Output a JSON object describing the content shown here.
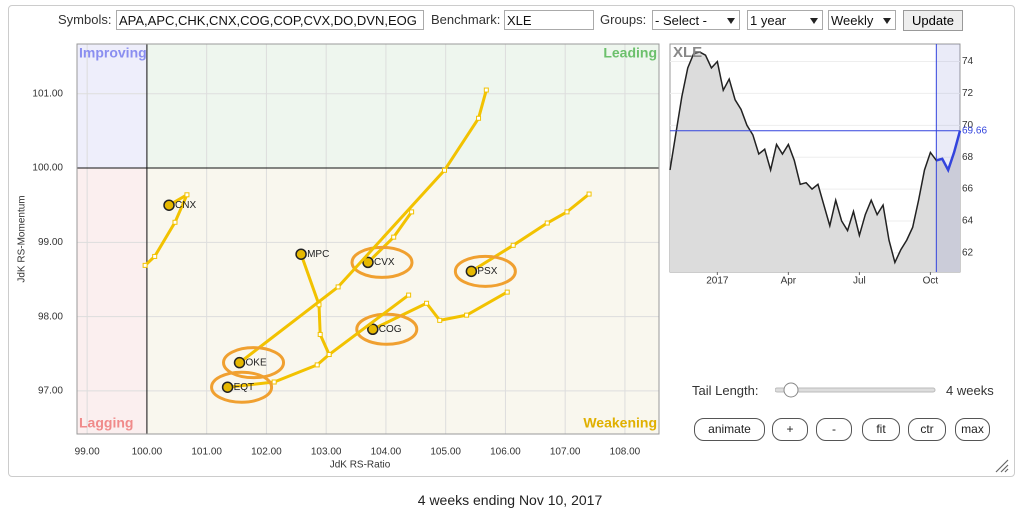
{
  "toolbar": {
    "symbols_label": "Symbols:",
    "symbols": "APA,APC,CHK,CNX,COG,COP,CVX,DO,DVN,EOG",
    "benchmark_label": "Benchmark:",
    "benchmark": "XLE",
    "groups_label": "Groups:",
    "group": "- Select -",
    "period": "1 year",
    "frequency": "Weekly",
    "update": "Update"
  },
  "chart_data": [
    {
      "type": "scatter",
      "x_label": "JdK RS-Ratio",
      "y_label": "JdK RS-Momentum",
      "quadrant_labels": {
        "improving": "Improving",
        "leading": "Leading",
        "lagging": "Lagging",
        "weakening": "Weakening"
      },
      "center": [
        100,
        100
      ],
      "xlim": [
        98.83,
        108.57
      ],
      "ylim": [
        96.42,
        101.67
      ],
      "xticks": [
        {
          "value": 99,
          "label": "99.00"
        },
        {
          "value": 100,
          "label": "100.00"
        },
        {
          "value": 101,
          "label": "101.00"
        },
        {
          "value": 102,
          "label": "102.00"
        },
        {
          "value": 103,
          "label": "103.00"
        },
        {
          "value": 104,
          "label": "104.00"
        },
        {
          "value": 105,
          "label": "105.00"
        },
        {
          "value": 106,
          "label": "106.00"
        },
        {
          "value": 107,
          "label": "107.00"
        },
        {
          "value": 108,
          "label": "108.00"
        }
      ],
      "yticks": [
        {
          "value": 97,
          "label": "97.00"
        },
        {
          "value": 98,
          "label": "98.00"
        },
        {
          "value": 99,
          "label": "99.00"
        },
        {
          "value": 100,
          "label": "100.00"
        },
        {
          "value": 101,
          "label": "101.00"
        }
      ],
      "grid": true,
      "series": [
        {
          "name": "CNX",
          "color": "#f2c200",
          "highlight": false,
          "x": [
            99.97,
            100.13,
            100.47,
            100.67,
            100.37
          ],
          "values": [
            98.69,
            98.81,
            99.27,
            99.64,
            99.5
          ]
        },
        {
          "name": "MPC",
          "color": "#f2c200",
          "highlight": false,
          "x": [
            103.05,
            102.9,
            102.88,
            102.58
          ],
          "values": [
            97.49,
            97.76,
            98.16,
            98.84
          ]
        },
        {
          "name": "CVX",
          "color": "#f2c200",
          "highlight": true,
          "x": [
            104.43,
            104.13,
            103.7
          ],
          "values": [
            99.41,
            99.07,
            98.73
          ]
        },
        {
          "name": "PSX",
          "color": "#f2c200",
          "highlight": true,
          "x": [
            107.4,
            107.03,
            106.7,
            106.13,
            105.43
          ],
          "values": [
            99.65,
            99.41,
            99.26,
            98.96,
            98.61
          ]
        },
        {
          "name": "COG",
          "color": "#f2c200",
          "highlight": true,
          "x": [
            106.03,
            105.35,
            104.9,
            104.68,
            103.78
          ],
          "values": [
            98.33,
            98.02,
            97.95,
            98.18,
            97.83
          ]
        },
        {
          "name": "OKE",
          "color": "#f2c200",
          "highlight": true,
          "x": [
            105.68,
            105.55,
            104.98,
            103.2,
            101.55
          ],
          "values": [
            101.05,
            100.67,
            99.97,
            98.4,
            97.38
          ]
        },
        {
          "name": "EQT",
          "color": "#f2c200",
          "highlight": true,
          "x": [
            104.38,
            103.05,
            102.85,
            102.13,
            101.35
          ],
          "values": [
            98.29,
            97.49,
            97.35,
            97.12,
            97.05
          ]
        }
      ]
    },
    {
      "type": "line",
      "title": "XLE",
      "categories": [
        null,
        null,
        null,
        null,
        null,
        null,
        null,
        null,
        "2017",
        null,
        null,
        null,
        null,
        null,
        null,
        null,
        null,
        null,
        null,
        null,
        "Apr",
        null,
        null,
        null,
        null,
        null,
        null,
        null,
        null,
        null,
        null,
        null,
        "Jul",
        null,
        null,
        null,
        null,
        null,
        null,
        null,
        null,
        null,
        null,
        null,
        "Oct",
        null,
        null,
        null,
        null,
        null
      ],
      "values": [
        67.2,
        69.5,
        71.8,
        73.6,
        74.5,
        74.6,
        74.4,
        73.6,
        74.0,
        72.2,
        72.9,
        71.6,
        71.0,
        70.0,
        69.4,
        68.2,
        68.5,
        67.2,
        68.8,
        68.2,
        68.8,
        67.8,
        66.3,
        66.4,
        66.0,
        66.3,
        65.0,
        63.7,
        65.3,
        64.0,
        63.4,
        64.6,
        63.1,
        64.4,
        65.3,
        64.4,
        65.0,
        62.8,
        61.4,
        62.2,
        62.8,
        63.6,
        65.3,
        67.2,
        68.3,
        67.8,
        67.9,
        67.2,
        68.3,
        69.66
      ],
      "color": "#222222",
      "recent_color": "#3344dd",
      "ylim": [
        60.8,
        75.1
      ],
      "yticks": [
        62,
        64,
        66,
        68,
        70,
        72,
        74
      ],
      "grid": true
    }
  ],
  "controls": {
    "tail_length_label": "Tail Length:",
    "tail_length": {
      "value": 4,
      "label": "4 weeks"
    },
    "buttons": [
      "animate",
      "+",
      "-",
      "fit",
      "ctr",
      "max"
    ]
  },
  "footer": "4 weeks ending Nov 10, 2017"
}
